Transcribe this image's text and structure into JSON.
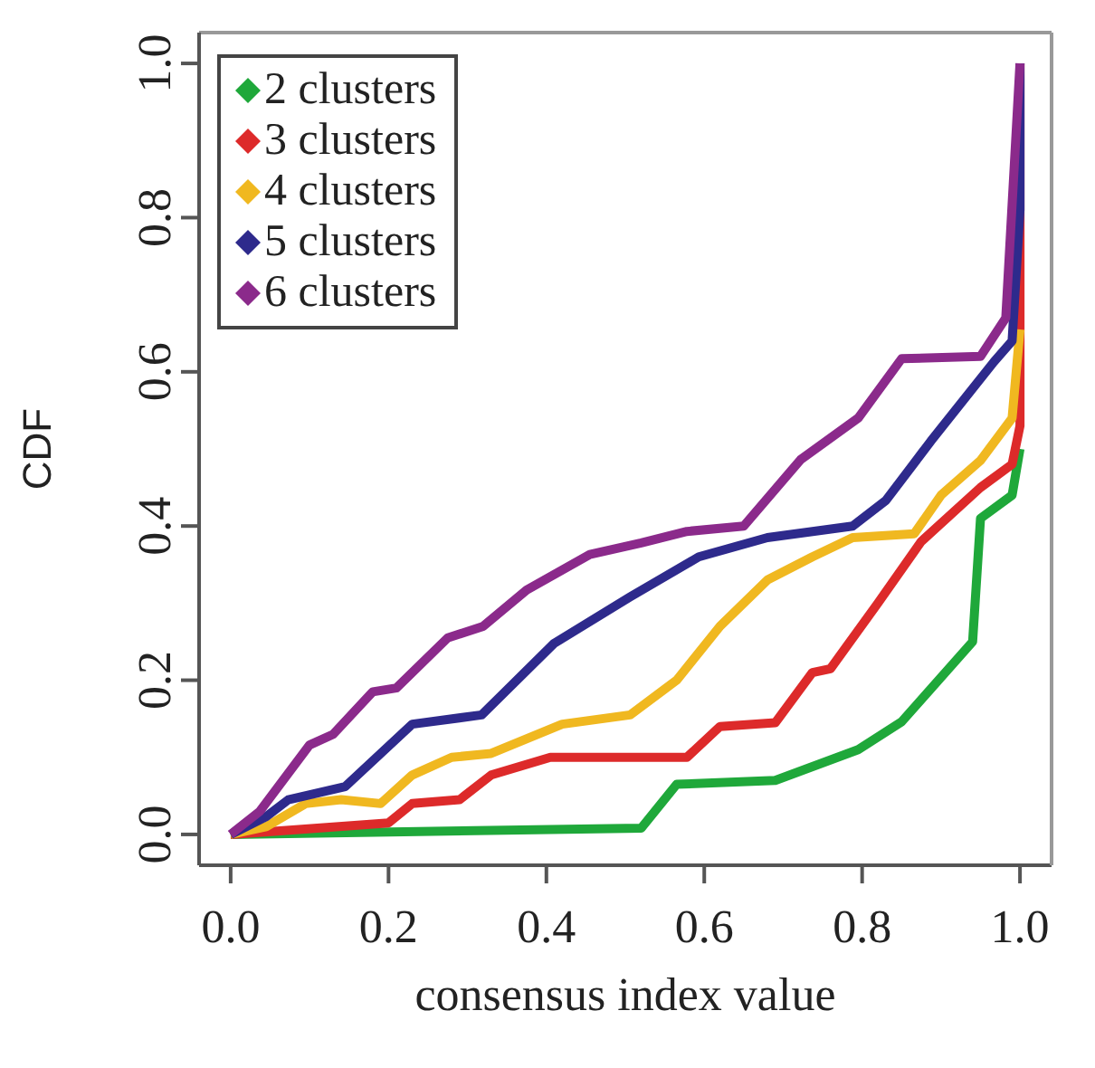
{
  "chart_data": {
    "type": "line",
    "xlabel": "consensus index value",
    "ylabel": "CDF",
    "xlim": [
      -0.04,
      1.04
    ],
    "ylim": [
      -0.04,
      1.04
    ],
    "xticks": [
      {
        "value": 0,
        "label": "0.0"
      },
      0.2,
      0.4,
      0.6,
      0.8,
      {
        "value": 1,
        "label": "1.0"
      }
    ],
    "yticks": [
      {
        "value": 0,
        "label": "0.0"
      },
      0.2,
      0.4,
      0.6,
      0.8,
      {
        "value": 1,
        "label": "1.0"
      }
    ],
    "grid": false,
    "legend": "top left",
    "series": [
      {
        "name": "2 clusters",
        "color": "#1fa83a",
        "x": [
          0,
          0.52,
          0.565,
          0.69,
          0.795,
          0.85,
          0.94,
          0.95,
          0.99,
          1.0
        ],
        "values": [
          0,
          0.008,
          0.065,
          0.07,
          0.11,
          0.146,
          0.25,
          0.41,
          0.44,
          0.5
        ]
      },
      {
        "name": "3 clusters",
        "color": "#dd2a2a",
        "x": [
          0,
          0.2,
          0.23,
          0.29,
          0.33,
          0.405,
          0.578,
          0.62,
          0.69,
          0.737,
          0.76,
          0.82,
          0.875,
          0.95,
          0.99,
          1.0,
          1.0
        ],
        "values": [
          0,
          0.015,
          0.04,
          0.045,
          0.077,
          0.1,
          0.1,
          0.14,
          0.145,
          0.21,
          0.215,
          0.3,
          0.38,
          0.45,
          0.48,
          0.53,
          1.0
        ]
      },
      {
        "name": "4 clusters",
        "color": "#f0b820",
        "x": [
          0,
          0.045,
          0.095,
          0.14,
          0.19,
          0.23,
          0.28,
          0.33,
          0.42,
          0.506,
          0.565,
          0.62,
          0.68,
          0.737,
          0.788,
          0.866,
          0.9,
          0.95,
          0.99,
          1.0
        ],
        "values": [
          0,
          0.01,
          0.04,
          0.045,
          0.04,
          0.077,
          0.1,
          0.105,
          0.143,
          0.155,
          0.2,
          0.27,
          0.33,
          0.36,
          0.385,
          0.39,
          0.44,
          0.485,
          0.54,
          0.655
        ]
      },
      {
        "name": "5 clusters",
        "color": "#2e2a8c",
        "x": [
          0,
          0.045,
          0.073,
          0.145,
          0.23,
          0.318,
          0.41,
          0.506,
          0.593,
          0.68,
          0.788,
          0.83,
          0.887,
          0.967,
          0.99,
          1.0,
          1.0
        ],
        "values": [
          0,
          0.023,
          0.045,
          0.062,
          0.143,
          0.155,
          0.248,
          0.308,
          0.36,
          0.385,
          0.4,
          0.433,
          0.51,
          0.613,
          0.64,
          0.81,
          1.0
        ]
      },
      {
        "name": "6 clusters",
        "color": "#8b2a8b",
        "x": [
          0,
          0.037,
          0.1,
          0.13,
          0.18,
          0.21,
          0.275,
          0.32,
          0.375,
          0.455,
          0.52,
          0.578,
          0.65,
          0.722,
          0.795,
          0.85,
          0.95,
          0.982,
          1.0
        ],
        "values": [
          0,
          0.03,
          0.116,
          0.13,
          0.185,
          0.19,
          0.255,
          0.27,
          0.317,
          0.363,
          0.378,
          0.393,
          0.4,
          0.486,
          0.54,
          0.617,
          0.62,
          0.67,
          1.0
        ]
      }
    ]
  }
}
